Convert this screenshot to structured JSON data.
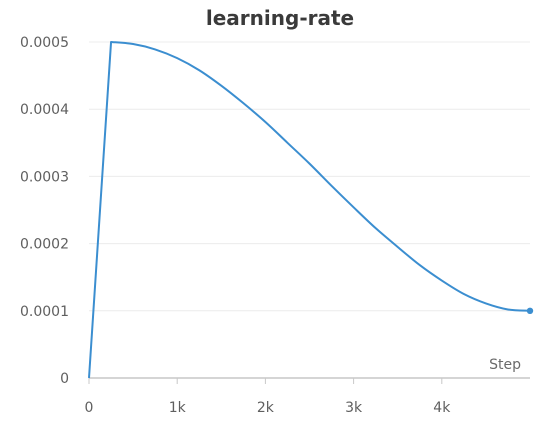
{
  "chart_data": {
    "type": "line",
    "title": "learning-rate",
    "xlabel": "Step",
    "ylabel": "",
    "xlim": [
      0,
      5000
    ],
    "ylim": [
      0,
      0.0005
    ],
    "grid": true,
    "x_ticks": [
      0,
      1000,
      2000,
      3000,
      4000
    ],
    "x_tick_labels": [
      "0",
      "1k",
      "2k",
      "3k",
      "4k"
    ],
    "y_ticks": [
      0,
      0.0001,
      0.0002,
      0.0003,
      0.0004,
      0.0005
    ],
    "y_tick_labels": [
      "0",
      "0.0001",
      "0.0002",
      "0.0003",
      "0.0004",
      "0.0005"
    ],
    "color": "#3b8ed0",
    "series": [
      {
        "x": [
          0,
          250,
          500,
          750,
          1000,
          1250,
          1500,
          1750,
          2000,
          2250,
          2500,
          2750,
          3000,
          3250,
          3500,
          3750,
          4000,
          4250,
          4500,
          4750,
          5000
        ],
        "y": [
          0.0,
          0.0005,
          0.000497,
          0.000489,
          0.000476,
          0.000458,
          0.000435,
          0.000409,
          0.000381,
          0.00035,
          0.000319,
          0.000286,
          0.000254,
          0.000223,
          0.000195,
          0.000168,
          0.000145,
          0.000125,
          0.000111,
          0.000102,
          0.0001
        ]
      }
    ]
  }
}
